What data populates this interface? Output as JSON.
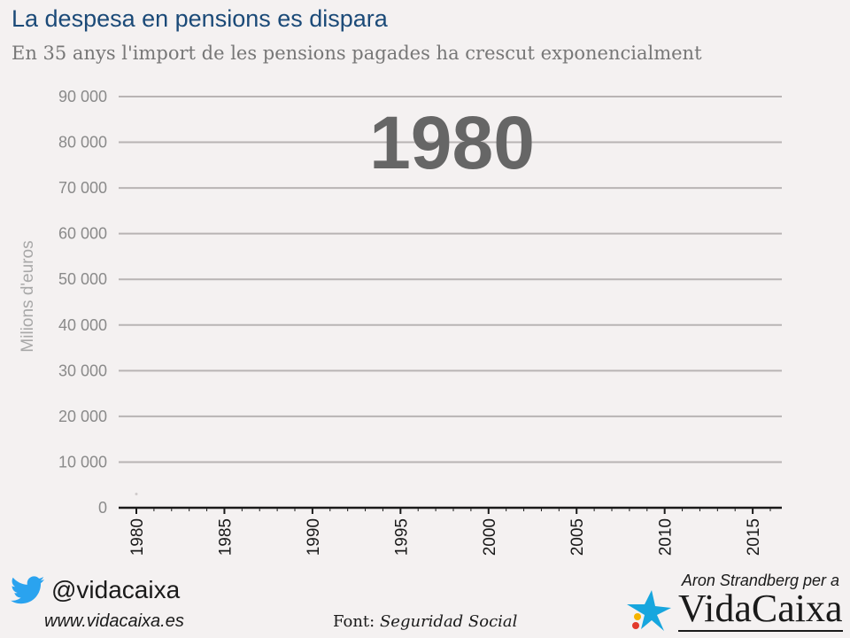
{
  "header": {
    "title": "La despesa en pensions es dispara",
    "subtitle": "En 35 anys l'import de les pensions pagades ha crescut exponencialment"
  },
  "footer": {
    "twitter_handle": "@vidacaixa",
    "website": "www.vidacaixa.es",
    "source_label": "Font: ",
    "source_name": "Seguridad Social",
    "credit": "Aron Strandberg per a",
    "brand": "VidaCaixa",
    "twitter_icon": "twitter-bird-icon",
    "brand_icon": "star-logo-icon"
  },
  "colors": {
    "title": "#1b4a78",
    "gridline": "#b8b4b4",
    "axis": "#1a1a1a",
    "tick_label": "#8a8a8a",
    "year_overlay": "#666666",
    "twitter": "#2aa3ef",
    "star_blue": "#17a6de",
    "star_red": "#e23a2b",
    "star_yellow": "#f5b400"
  },
  "chart_data": {
    "type": "line",
    "current_year_label": "1980",
    "ylabel": "Milions d'euros",
    "xlabel": "",
    "ylim": [
      0,
      90000
    ],
    "xlim": [
      1980,
      2016
    ],
    "y_ticks": [
      0,
      10000,
      20000,
      30000,
      40000,
      50000,
      60000,
      70000,
      80000,
      90000
    ],
    "y_tick_labels": [
      "0",
      "10 000",
      "20 000",
      "30 000",
      "40 000",
      "50 000",
      "60 000",
      "70 000",
      "80 000",
      "90 000"
    ],
    "x_ticks": [
      1980,
      1985,
      1990,
      1995,
      2000,
      2005,
      2010,
      2015
    ],
    "x_tick_labels": [
      "1980",
      "1985",
      "1990",
      "1995",
      "2000",
      "2005",
      "2010",
      "2015"
    ],
    "grid": true,
    "series": [
      {
        "x": [
          1980
        ],
        "values": [
          3000
        ]
      }
    ]
  }
}
